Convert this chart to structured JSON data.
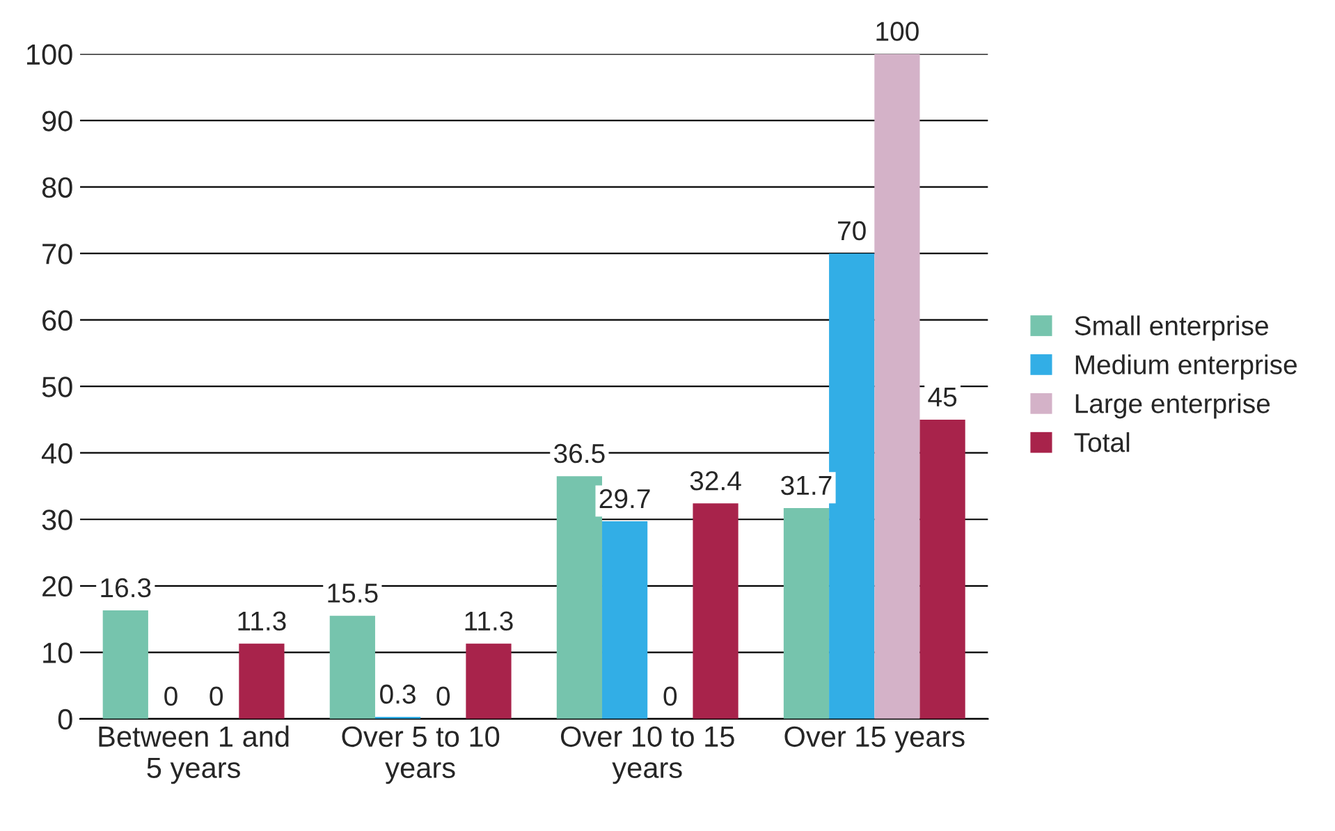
{
  "chart_data": {
    "type": "bar",
    "categories": [
      "Between 1 and\n5 years",
      "Over 5 to 10\nyears",
      "Over 10 to 15\nyears",
      "Over 15 years"
    ],
    "series": [
      {
        "name": "Small enterprise",
        "color": "#76c4ad",
        "values": [
          16.3,
          15.5,
          36.5,
          31.7
        ]
      },
      {
        "name": "Medium enterprise",
        "color": "#32aee6",
        "values": [
          0,
          0.3,
          29.7,
          70
        ]
      },
      {
        "name": "Large enterprise",
        "color": "#d4b2c8",
        "values": [
          0,
          0,
          0,
          100
        ]
      },
      {
        "name": "Total",
        "color": "#a8234b",
        "values": [
          11.3,
          11.3,
          32.4,
          45
        ]
      }
    ],
    "ylim": [
      0,
      100
    ],
    "yticks": [
      0,
      10,
      20,
      30,
      40,
      50,
      60,
      70,
      80,
      90,
      100
    ],
    "grid": "y",
    "legend": "right",
    "data_labels": true
  }
}
